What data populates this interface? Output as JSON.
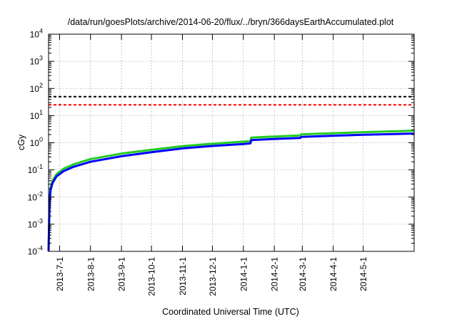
{
  "chart_data": {
    "type": "line",
    "title": "/data/run/goesPlots/archive/2014-06-20/flux/../bryn/366daysEarthAccumulated.plot",
    "xlabel": "Coordinated Universal Time (UTC)",
    "ylabel": "cGy",
    "y_scale": "log",
    "ylim": [
      0.0001,
      10000
    ],
    "xlim": [
      "2013-06-20",
      "2014-06-21"
    ],
    "grid": true,
    "x_ticks": [
      "2013-7-1",
      "2013-8-1",
      "2013-9-1",
      "2013-10-1",
      "2013-11-1",
      "2013-12-1",
      "2014-1-1",
      "2014-2-1",
      "2014-3-1",
      "2014-4-1",
      "2014-5-1"
    ],
    "y_ticks": [
      {
        "value": 0.0001,
        "base": "10",
        "exp": "-4"
      },
      {
        "value": 0.001,
        "base": "10",
        "exp": "-3"
      },
      {
        "value": 0.01,
        "base": "10",
        "exp": "-2"
      },
      {
        "value": 0.1,
        "base": "10",
        "exp": "-1"
      },
      {
        "value": 1,
        "base": "10",
        "exp": "0"
      },
      {
        "value": 10,
        "base": "10",
        "exp": "1"
      },
      {
        "value": 100,
        "base": "10",
        "exp": "2"
      },
      {
        "value": 1000,
        "base": "10",
        "exp": "3"
      },
      {
        "value": 10000,
        "base": "10",
        "exp": "4"
      }
    ],
    "thresholds": [
      {
        "value": 50,
        "color": "#000000",
        "style": "dashed"
      },
      {
        "value": 25,
        "color": "#ff0000",
        "style": "dashed"
      }
    ],
    "series": [
      {
        "color": "#22cc22",
        "points": [
          {
            "x": "2013-06-20",
            "y": 0.0001
          },
          {
            "x": "2013-06-21",
            "y": 0.008
          },
          {
            "x": "2013-06-22",
            "y": 0.022
          },
          {
            "x": "2013-06-24",
            "y": 0.04
          },
          {
            "x": "2013-06-28",
            "y": 0.07
          },
          {
            "x": "2013-07-05",
            "y": 0.11
          },
          {
            "x": "2013-07-15",
            "y": 0.16
          },
          {
            "x": "2013-08-01",
            "y": 0.25
          },
          {
            "x": "2013-09-01",
            "y": 0.4
          },
          {
            "x": "2013-10-01",
            "y": 0.55
          },
          {
            "x": "2013-11-01",
            "y": 0.75
          },
          {
            "x": "2013-12-01",
            "y": 0.92
          },
          {
            "x": "2014-01-01",
            "y": 1.1
          },
          {
            "x": "2014-01-08",
            "y": 1.15
          },
          {
            "x": "2014-01-09",
            "y": 1.55
          },
          {
            "x": "2014-02-01",
            "y": 1.7
          },
          {
            "x": "2014-02-27",
            "y": 1.85
          },
          {
            "x": "2014-02-28",
            "y": 2.05
          },
          {
            "x": "2014-04-01",
            "y": 2.25
          },
          {
            "x": "2014-05-01",
            "y": 2.45
          },
          {
            "x": "2014-06-01",
            "y": 2.65
          },
          {
            "x": "2014-06-21",
            "y": 2.8
          }
        ]
      },
      {
        "color": "#0000ff",
        "points": [
          {
            "x": "2013-06-20",
            "y": 0.0001
          },
          {
            "x": "2013-06-21",
            "y": 0.006
          },
          {
            "x": "2013-06-22",
            "y": 0.018
          },
          {
            "x": "2013-06-24",
            "y": 0.033
          },
          {
            "x": "2013-06-28",
            "y": 0.058
          },
          {
            "x": "2013-07-05",
            "y": 0.09
          },
          {
            "x": "2013-07-15",
            "y": 0.13
          },
          {
            "x": "2013-08-01",
            "y": 0.2
          },
          {
            "x": "2013-09-01",
            "y": 0.32
          },
          {
            "x": "2013-10-01",
            "y": 0.45
          },
          {
            "x": "2013-11-01",
            "y": 0.62
          },
          {
            "x": "2013-12-01",
            "y": 0.76
          },
          {
            "x": "2014-01-01",
            "y": 0.9
          },
          {
            "x": "2014-01-08",
            "y": 0.95
          },
          {
            "x": "2014-01-09",
            "y": 1.25
          },
          {
            "x": "2014-02-01",
            "y": 1.38
          },
          {
            "x": "2014-02-27",
            "y": 1.5
          },
          {
            "x": "2014-02-28",
            "y": 1.65
          },
          {
            "x": "2014-04-01",
            "y": 1.82
          },
          {
            "x": "2014-05-01",
            "y": 1.98
          },
          {
            "x": "2014-06-01",
            "y": 2.1
          },
          {
            "x": "2014-06-21",
            "y": 2.2
          }
        ]
      }
    ]
  }
}
